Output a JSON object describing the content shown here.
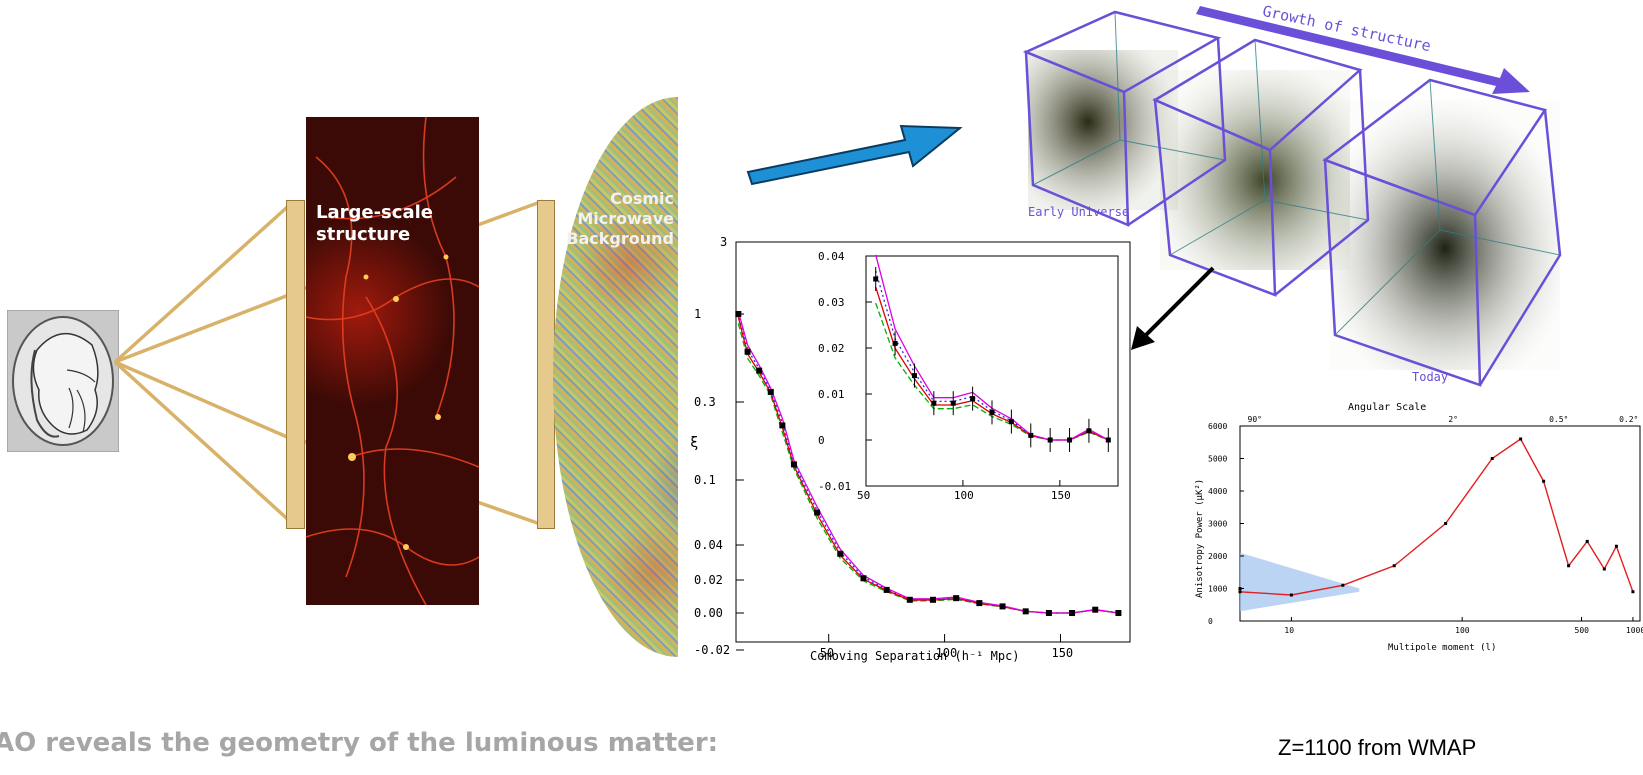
{
  "footer_caption": "AO reveals the geometry of the luminous matter:",
  "lss_panel": {
    "label_line1": "Large-scale",
    "label_line2": "structure"
  },
  "cmb_panel": {
    "label_line1": "Cosmic",
    "label_line2": "Microwave",
    "label_line3": "Background"
  },
  "growth_panel": {
    "title": "Growth of structure",
    "left_label": "Early Universe",
    "right_label": "Today"
  },
  "wmap_panel": {
    "caption": "Z=1100 from WMAP",
    "top_axis_label": "Angular Scale",
    "top_ticks": [
      "90°",
      "2°",
      "0.5°",
      "0.2°"
    ],
    "y_label": "Anisotropy Power (μK²)",
    "y_ticks": [
      "6000",
      "5000",
      "4000",
      "3000",
      "2000",
      "1000",
      "0"
    ],
    "x_label": "Multipole moment (l)",
    "x_ticks": [
      "10",
      "100",
      "500",
      "1000"
    ]
  },
  "correlation_plot": {
    "x_label": "Comoving Separation (h⁻¹ Mpc)",
    "y_ticks": [
      "1",
      "0.3",
      "0.1",
      "0.04",
      "0.02",
      "0.00",
      "-0.02"
    ],
    "y_top": "3",
    "x_ticks": [
      "50",
      "100",
      "150"
    ],
    "inset_y_ticks": [
      "0.04",
      "0.03",
      "0.02",
      "0.01",
      "0",
      "-0.01"
    ],
    "inset_x_ticks": [
      "50",
      "100",
      "150"
    ]
  },
  "colors": {
    "blue_arrow": "#1e90d6",
    "cube_edge": "#6b4fd8",
    "ruler_tan": "#d9b26a",
    "lss_bg": "#3b0a06"
  },
  "chart_data": [
    {
      "type": "line",
      "title": "",
      "xlabel": "Comoving Separation (h⁻¹ Mpc)",
      "ylabel": "",
      "xlim": [
        10,
        180
      ],
      "x": [
        11,
        15,
        20,
        25,
        30,
        35,
        45,
        55,
        65,
        75,
        85,
        95,
        105,
        115,
        125,
        135,
        145,
        155,
        165,
        175
      ],
      "series": [
        {
          "values": [
            1.0,
            0.7,
            0.55,
            0.38,
            0.24,
            0.14,
            0.07,
            0.035,
            0.021,
            0.014,
            0.008,
            0.008,
            0.009,
            0.006,
            0.004,
            0.001,
            0.0,
            0.0,
            0.002,
            0.0
          ]
        }
      ]
    },
    {
      "type": "line",
      "title": "",
      "xlabel": "Multipole moment (l)",
      "ylabel": "Anisotropy Power (μK²)",
      "ylim": [
        0,
        6000
      ],
      "x": [
        2,
        5,
        10,
        20,
        40,
        80,
        150,
        220,
        300,
        420,
        540,
        680,
        800,
        1000
      ],
      "series": [
        {
          "values": [
            1000,
            900,
            800,
            1100,
            1700,
            3000,
            5000,
            5600,
            4300,
            1700,
            2450,
            1600,
            2300,
            900
          ]
        }
      ]
    }
  ]
}
